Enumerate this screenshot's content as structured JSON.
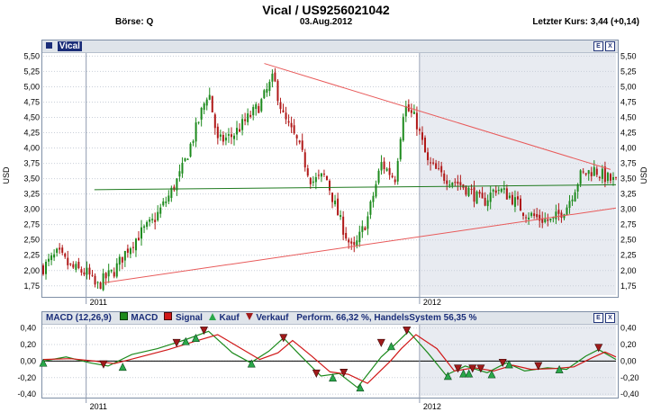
{
  "header": {
    "title": "Vical  /  US9256021042",
    "exchange": "Börse: Q",
    "date": "03.Aug.2012",
    "last_price": "Letzter Kurs: 3,44 (+0,14)"
  },
  "price_panel": {
    "name": "Vical",
    "e_button": "E",
    "x_button": "X"
  },
  "macd_panel": {
    "legend": {
      "title": "MACD (12,26,9)",
      "macd": "MACD",
      "signal": "Signal",
      "buy": "Kauf",
      "sell": "Verkauf",
      "perf": "Perform. 66,32 %, HandelsSystem 56,35 %"
    },
    "e_button": "E",
    "x_button": "X"
  },
  "colors": {
    "up_candle": "#1d8a1d",
    "down_candle": "#b01818",
    "trendline": "#e85a5a",
    "horizontal": "#1f7a1f",
    "shade": "#e8ebf1",
    "macd": "#1d8a1d",
    "signal": "#d01818",
    "buy_marker": "#2aa84a",
    "sell_marker": "#a01a1a"
  },
  "chart_data": [
    {
      "type": "candlestick",
      "ylabel": "USD",
      "ylim": [
        1.6,
        5.55
      ],
      "yticks": [
        "5,50",
        "5,25",
        "5,00",
        "4,75",
        "4,50",
        "4,25",
        "4,00",
        "3,75",
        "3,50",
        "3,25",
        "3,00",
        "2,75",
        "2,50",
        "2,25",
        "2,00",
        "1,75"
      ],
      "ytick_values": [
        5.5,
        5.25,
        5.0,
        4.75,
        4.5,
        4.25,
        4.0,
        3.75,
        3.5,
        3.25,
        3.0,
        2.75,
        2.5,
        2.25,
        2.0,
        1.75
      ],
      "xtick_labels": [
        "2011",
        "2012"
      ],
      "x_start": "2010-11-15",
      "x_end": "2012-08-03",
      "shaded_from": "2012-01-02",
      "grid": true,
      "closes": [
        {
          "date": "2010-11-15",
          "close": 2.05
        },
        {
          "date": "2010-12-01",
          "close": 2.28
        },
        {
          "date": "2010-12-15",
          "close": 2.05
        },
        {
          "date": "2011-01-03",
          "close": 1.95
        },
        {
          "date": "2011-01-12",
          "close": 1.72
        },
        {
          "date": "2011-01-20",
          "close": 1.85
        },
        {
          "date": "2011-02-01",
          "close": 2.0
        },
        {
          "date": "2011-02-15",
          "close": 2.35
        },
        {
          "date": "2011-03-01",
          "close": 2.6
        },
        {
          "date": "2011-03-15",
          "close": 2.8
        },
        {
          "date": "2011-04-01",
          "close": 3.2
        },
        {
          "date": "2011-04-15",
          "close": 3.6
        },
        {
          "date": "2011-05-01",
          "close": 4.3
        },
        {
          "date": "2011-05-15",
          "close": 4.95
        },
        {
          "date": "2011-05-25",
          "close": 4.1
        },
        {
          "date": "2011-06-10",
          "close": 4.2
        },
        {
          "date": "2011-06-25",
          "close": 4.45
        },
        {
          "date": "2011-07-10",
          "close": 4.7
        },
        {
          "date": "2011-07-25",
          "close": 5.15
        },
        {
          "date": "2011-08-05",
          "close": 4.5
        },
        {
          "date": "2011-08-20",
          "close": 4.1
        },
        {
          "date": "2011-09-05",
          "close": 3.45
        },
        {
          "date": "2011-09-20",
          "close": 3.55
        },
        {
          "date": "2011-10-05",
          "close": 2.85
        },
        {
          "date": "2011-10-20",
          "close": 2.3
        },
        {
          "date": "2011-11-05",
          "close": 2.85
        },
        {
          "date": "2011-11-20",
          "close": 3.75
        },
        {
          "date": "2011-12-05",
          "close": 3.5
        },
        {
          "date": "2011-12-15",
          "close": 4.7
        },
        {
          "date": "2011-12-28",
          "close": 4.45
        },
        {
          "date": "2012-01-10",
          "close": 3.75
        },
        {
          "date": "2012-01-25",
          "close": 3.55
        },
        {
          "date": "2012-02-10",
          "close": 3.45
        },
        {
          "date": "2012-02-25",
          "close": 3.3
        },
        {
          "date": "2012-03-10",
          "close": 3.1
        },
        {
          "date": "2012-03-25",
          "close": 3.35
        },
        {
          "date": "2012-04-10",
          "close": 3.2
        },
        {
          "date": "2012-04-25",
          "close": 2.95
        },
        {
          "date": "2012-05-10",
          "close": 2.85
        },
        {
          "date": "2012-05-25",
          "close": 2.8
        },
        {
          "date": "2012-06-10",
          "close": 3.05
        },
        {
          "date": "2012-06-25",
          "close": 3.55
        },
        {
          "date": "2012-07-10",
          "close": 3.65
        },
        {
          "date": "2012-07-25",
          "close": 3.5
        },
        {
          "date": "2012-08-03",
          "close": 3.44
        }
      ],
      "trendlines": [
        {
          "from": {
            "date": "2011-07-15",
            "value": 5.38
          },
          "to": {
            "date": "2012-07-28",
            "value": 3.65
          }
        },
        {
          "from": {
            "date": "2011-01-20",
            "value": 1.8
          },
          "to": {
            "date": "2012-08-03",
            "value": 3.02
          }
        },
        {
          "from": {
            "date": "2011-01-10",
            "value": 3.32
          },
          "to": {
            "date": "2012-08-03",
            "value": 3.4
          }
        }
      ]
    },
    {
      "type": "line",
      "title": "MACD (12,26,9)",
      "ylim": [
        -0.42,
        0.44
      ],
      "yticks": [
        "0,40",
        "0,20",
        "0,00",
        "-0,20",
        "-0,40"
      ],
      "ytick_values": [
        0.4,
        0.2,
        0.0,
        -0.2,
        -0.4
      ],
      "xtick_labels": [
        "2011",
        "2012"
      ],
      "x_start": "2010-11-15",
      "x_end": "2012-08-03",
      "zero_line": true,
      "series": [
        {
          "name": "MACD",
          "points": [
            {
              "date": "2010-11-15",
              "value": 0.0
            },
            {
              "date": "2010-12-10",
              "value": 0.05
            },
            {
              "date": "2011-01-05",
              "value": -0.02
            },
            {
              "date": "2011-01-25",
              "value": -0.06
            },
            {
              "date": "2011-02-20",
              "value": 0.08
            },
            {
              "date": "2011-03-20",
              "value": 0.15
            },
            {
              "date": "2011-04-20",
              "value": 0.26
            },
            {
              "date": "2011-05-15",
              "value": 0.36
            },
            {
              "date": "2011-06-10",
              "value": 0.1
            },
            {
              "date": "2011-06-30",
              "value": -0.02
            },
            {
              "date": "2011-07-20",
              "value": 0.12
            },
            {
              "date": "2011-08-05",
              "value": 0.28
            },
            {
              "date": "2011-08-25",
              "value": 0.05
            },
            {
              "date": "2011-09-15",
              "value": -0.18
            },
            {
              "date": "2011-10-05",
              "value": -0.15
            },
            {
              "date": "2011-10-25",
              "value": -0.32
            },
            {
              "date": "2011-11-20",
              "value": 0.05
            },
            {
              "date": "2011-12-05",
              "value": 0.2
            },
            {
              "date": "2011-12-20",
              "value": 0.36
            },
            {
              "date": "2012-01-10",
              "value": 0.1
            },
            {
              "date": "2012-01-30",
              "value": -0.17
            },
            {
              "date": "2012-02-20",
              "value": -0.06
            },
            {
              "date": "2012-03-15",
              "value": -0.14
            },
            {
              "date": "2012-04-05",
              "value": -0.02
            },
            {
              "date": "2012-04-25",
              "value": -0.12
            },
            {
              "date": "2012-05-20",
              "value": -0.08
            },
            {
              "date": "2012-06-10",
              "value": -0.1
            },
            {
              "date": "2012-07-01",
              "value": 0.06
            },
            {
              "date": "2012-07-15",
              "value": 0.14
            },
            {
              "date": "2012-08-03",
              "value": 0.02
            }
          ]
        },
        {
          "name": "Signal",
          "points": [
            {
              "date": "2010-11-15",
              "value": 0.02
            },
            {
              "date": "2010-12-15",
              "value": 0.03
            },
            {
              "date": "2011-01-10",
              "value": 0.0
            },
            {
              "date": "2011-02-01",
              "value": -0.03
            },
            {
              "date": "2011-03-01",
              "value": 0.05
            },
            {
              "date": "2011-04-01",
              "value": 0.14
            },
            {
              "date": "2011-04-30",
              "value": 0.24
            },
            {
              "date": "2011-05-25",
              "value": 0.32
            },
            {
              "date": "2011-06-20",
              "value": 0.15
            },
            {
              "date": "2011-07-10",
              "value": 0.02
            },
            {
              "date": "2011-07-30",
              "value": 0.1
            },
            {
              "date": "2011-08-15",
              "value": 0.25
            },
            {
              "date": "2011-09-05",
              "value": 0.06
            },
            {
              "date": "2011-09-25",
              "value": -0.13
            },
            {
              "date": "2011-10-15",
              "value": -0.16
            },
            {
              "date": "2011-11-05",
              "value": -0.27
            },
            {
              "date": "2011-11-30",
              "value": 0.0
            },
            {
              "date": "2011-12-12",
              "value": 0.15
            },
            {
              "date": "2011-12-28",
              "value": 0.32
            },
            {
              "date": "2012-01-20",
              "value": 0.15
            },
            {
              "date": "2012-02-08",
              "value": -0.12
            },
            {
              "date": "2012-03-01",
              "value": -0.08
            },
            {
              "date": "2012-03-22",
              "value": -0.12
            },
            {
              "date": "2012-04-12",
              "value": -0.05
            },
            {
              "date": "2012-05-02",
              "value": -0.1
            },
            {
              "date": "2012-05-28",
              "value": -0.09
            },
            {
              "date": "2012-06-18",
              "value": -0.07
            },
            {
              "date": "2012-07-08",
              "value": 0.04
            },
            {
              "date": "2012-07-22",
              "value": 0.11
            },
            {
              "date": "2012-08-03",
              "value": 0.05
            }
          ]
        }
      ],
      "buy_signals": [
        {
          "date": "2010-11-15",
          "value": -0.02
        },
        {
          "date": "2011-02-10",
          "value": -0.07
        },
        {
          "date": "2011-04-20",
          "value": 0.24
        },
        {
          "date": "2011-05-01",
          "value": 0.28
        },
        {
          "date": "2011-07-01",
          "value": -0.03
        },
        {
          "date": "2011-09-28",
          "value": -0.2
        },
        {
          "date": "2011-10-28",
          "value": -0.32
        },
        {
          "date": "2011-12-01",
          "value": 0.18
        },
        {
          "date": "2012-02-01",
          "value": -0.18
        },
        {
          "date": "2012-02-18",
          "value": -0.15
        },
        {
          "date": "2012-02-24",
          "value": -0.15
        },
        {
          "date": "2012-03-20",
          "value": -0.16
        },
        {
          "date": "2012-04-08",
          "value": -0.04
        },
        {
          "date": "2012-06-02",
          "value": -0.1
        }
      ],
      "sell_signals": [
        {
          "date": "2011-01-20",
          "value": -0.04
        },
        {
          "date": "2011-04-10",
          "value": 0.22
        },
        {
          "date": "2011-05-10",
          "value": 0.37
        },
        {
          "date": "2011-08-05",
          "value": 0.28
        },
        {
          "date": "2011-09-10",
          "value": -0.15
        },
        {
          "date": "2011-10-10",
          "value": -0.14
        },
        {
          "date": "2011-11-20",
          "value": 0.22
        },
        {
          "date": "2011-12-18",
          "value": 0.37
        },
        {
          "date": "2012-02-12",
          "value": -0.09
        },
        {
          "date": "2012-02-28",
          "value": -0.09
        },
        {
          "date": "2012-03-08",
          "value": -0.09
        },
        {
          "date": "2012-04-01",
          "value": -0.02
        },
        {
          "date": "2012-05-10",
          "value": -0.06
        },
        {
          "date": "2012-07-15",
          "value": 0.16
        }
      ]
    }
  ]
}
